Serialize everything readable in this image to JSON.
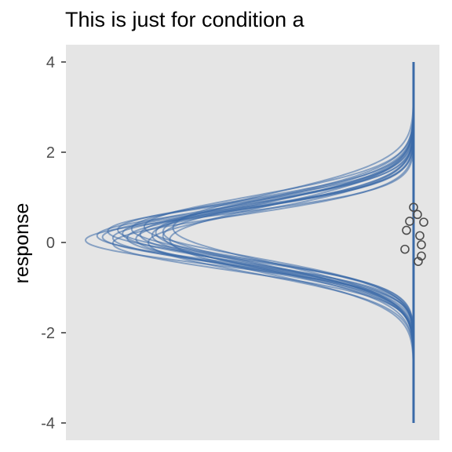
{
  "chart_data": {
    "type": "density-ridge",
    "title": "This is just for condition a",
    "xlabel": "",
    "ylabel": "response",
    "ylim": [
      -4.2,
      4.4
    ],
    "yticks": [
      -4,
      -2,
      0,
      2,
      4
    ],
    "ytick_labels": [
      "-4",
      "-2",
      "0",
      "2",
      "4"
    ],
    "grid": false,
    "legend": "none",
    "colors": {
      "panel": "#e5e5e5",
      "curve": "#3a6aa8",
      "point_stroke": "#4d4d4d"
    },
    "baseline_range": [
      -4,
      4
    ],
    "posterior_draws": [
      {
        "mu": 0.12,
        "sigma": 0.58
      },
      {
        "mu": 0.1,
        "sigma": 0.6
      },
      {
        "mu": 0.05,
        "sigma": 0.55
      },
      {
        "mu": 0.2,
        "sigma": 0.62
      },
      {
        "mu": 0.15,
        "sigma": 0.57
      },
      {
        "mu": 0.08,
        "sigma": 0.65
      },
      {
        "mu": 0.25,
        "sigma": 0.59
      },
      {
        "mu": 0.18,
        "sigma": 0.66
      },
      {
        "mu": -0.02,
        "sigma": 0.6
      },
      {
        "mu": 0.22,
        "sigma": 0.7
      },
      {
        "mu": 0.3,
        "sigma": 0.64
      },
      {
        "mu": 0.0,
        "sigma": 0.68
      },
      {
        "mu": 0.14,
        "sigma": 0.72
      },
      {
        "mu": 0.35,
        "sigma": 0.67
      },
      {
        "mu": 0.06,
        "sigma": 0.74
      },
      {
        "mu": 0.28,
        "sigma": 0.61
      },
      {
        "mu": 0.16,
        "sigma": 0.69
      },
      {
        "mu": 0.32,
        "sigma": 0.75
      },
      {
        "mu": 0.1,
        "sigma": 0.63
      },
      {
        "mu": 0.24,
        "sigma": 0.72
      }
    ],
    "observations": [
      0.78,
      0.62,
      0.47,
      0.45,
      0.27,
      0.15,
      -0.05,
      -0.15,
      -0.3,
      -0.42
    ]
  }
}
